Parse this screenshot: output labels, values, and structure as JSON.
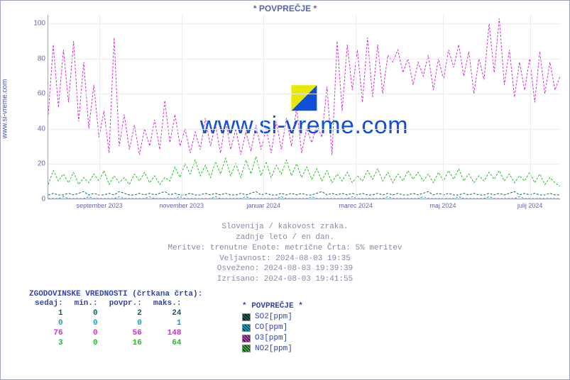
{
  "title": "* POVPREČJE *",
  "ylabel": "www.si-vreme.com",
  "watermark": {
    "text": "www.si-vreme.com"
  },
  "chart": {
    "type": "line",
    "ylim": [
      0,
      105
    ],
    "ytick_step": 20,
    "yticks": [
      0,
      20,
      40,
      60,
      80,
      100
    ],
    "xticks": [
      "september 2023",
      "november 2023",
      "januar 2024",
      "marec 2024",
      "maj 2024",
      "julij 2024"
    ],
    "xtick_positions_pct": [
      10,
      26,
      42,
      60,
      77,
      94
    ],
    "grid_color": "#eceaf2",
    "axis_color": "#a0a0c0",
    "background_color": "#ffffff",
    "series": [
      {
        "name": "SO2[ppm]",
        "color": "#106060",
        "dash": "3,2",
        "width": 1,
        "values": [
          2,
          3,
          2,
          2,
          3,
          2,
          3,
          4,
          2,
          3,
          2,
          2,
          3,
          2,
          4,
          3,
          2,
          2,
          3,
          2,
          3,
          2,
          3,
          4,
          2,
          3,
          2,
          2,
          3,
          2,
          2,
          3,
          2,
          3,
          2,
          3,
          2,
          2,
          3,
          2,
          3,
          4,
          2,
          3,
          2,
          2,
          3,
          2,
          3,
          2,
          3,
          2,
          2,
          3,
          4,
          2,
          3,
          2,
          3,
          2,
          3,
          2,
          3,
          2,
          2,
          3,
          2,
          3,
          2,
          3,
          2,
          2,
          3,
          2,
          3,
          4,
          2,
          3,
          2,
          3,
          2,
          2,
          3,
          2,
          3,
          2,
          2,
          3,
          2,
          3,
          2,
          3,
          4,
          2,
          3,
          2,
          3,
          2,
          2,
          3,
          2,
          2
        ]
      },
      {
        "name": "CO[ppm]",
        "color": "#10a0c0",
        "dash": "3,2",
        "width": 1,
        "values": [
          0,
          0,
          0,
          1,
          0,
          0,
          0,
          0,
          1,
          0,
          0,
          0,
          0,
          0,
          1,
          0,
          0,
          0,
          0,
          0,
          1,
          0,
          0,
          0,
          0,
          0,
          1,
          0,
          0,
          0,
          0,
          0,
          0,
          1,
          0,
          0,
          0,
          0,
          0,
          1,
          0,
          0,
          0,
          0,
          0,
          0,
          1,
          0,
          0,
          0,
          0,
          0,
          1,
          0,
          0,
          0,
          0,
          0,
          0,
          0,
          1,
          0,
          0,
          0,
          0,
          0,
          0,
          1,
          0,
          0,
          0,
          0,
          0,
          0,
          1,
          0,
          0,
          0,
          0,
          0,
          0,
          1,
          0,
          0,
          0,
          0,
          0,
          1,
          0,
          0,
          0,
          0,
          0,
          1,
          0,
          0,
          0,
          0,
          0,
          0,
          0,
          0
        ]
      },
      {
        "name": "O3[ppm]",
        "color": "#d030d0",
        "dash": "3,2",
        "width": 1,
        "values": [
          48,
          88,
          52,
          85,
          55,
          90,
          44,
          78,
          40,
          65,
          35,
          50,
          26,
          92,
          30,
          48,
          28,
          42,
          25,
          40,
          30,
          45,
          28,
          56,
          32,
          48,
          30,
          40,
          26,
          38,
          28,
          46,
          30,
          42,
          26,
          45,
          28,
          40,
          25,
          38,
          27,
          42,
          28,
          40,
          26,
          44,
          28,
          46,
          30,
          52,
          26,
          40,
          32,
          42,
          35,
          64,
          25,
          90,
          50,
          88,
          62,
          85,
          55,
          92,
          58,
          88,
          60,
          82,
          78,
          85,
          72,
          80,
          65,
          78,
          70,
          82,
          62,
          80,
          68,
          85,
          75,
          88,
          70,
          84,
          60,
          80,
          68,
          100,
          72,
          103,
          65,
          85,
          58,
          78,
          62,
          80,
          55,
          84,
          60,
          78,
          62,
          70
        ]
      },
      {
        "name": "NO2[ppm]",
        "color": "#20c020",
        "dash": "3,2",
        "width": 1,
        "values": [
          8,
          16,
          10,
          14,
          9,
          15,
          8,
          12,
          9,
          14,
          10,
          16,
          8,
          13,
          9,
          12,
          8,
          14,
          10,
          15,
          9,
          13,
          8,
          12,
          10,
          18,
          12,
          20,
          14,
          22,
          13,
          19,
          12,
          21,
          14,
          23,
          13,
          20,
          12,
          22,
          14,
          24,
          13,
          21,
          12,
          19,
          14,
          22,
          13,
          20,
          12,
          18,
          11,
          17,
          10,
          16,
          9,
          14,
          10,
          15,
          9,
          13,
          10,
          16,
          11,
          17,
          10,
          15,
          9,
          14,
          10,
          16,
          11,
          15,
          10,
          14,
          9,
          15,
          10,
          16,
          11,
          17,
          10,
          14,
          9,
          13,
          10,
          15,
          11,
          16,
          10,
          14,
          9,
          13,
          10,
          15,
          9,
          14,
          8,
          12,
          9,
          7
        ]
      }
    ]
  },
  "meta": {
    "line1": "Slovenija / kakovost zraka.",
    "line2": "zadnje leto / en dan.",
    "line3": "Meritve: trenutne  Enote: metrične  Črta: 5% meritev",
    "line4": "Veljavnost: 2024-08-03 19:35",
    "line5": "Osveženo: 2024-08-03 19:39:39",
    "line6": "Izrisano: 2024-08-03 19:41:55"
  },
  "historic": {
    "header": "ZGODOVINSKE VREDNOSTI (črtkana črta):",
    "columns": [
      "sedaj:",
      "min.:",
      "povpr.:",
      "maks.:"
    ],
    "rows": [
      {
        "now": 1,
        "min": 0,
        "avg": 2,
        "max": 24,
        "color": "#106060"
      },
      {
        "now": 0,
        "min": 0,
        "avg": 0,
        "max": 1,
        "color": "#10a0c0"
      },
      {
        "now": 76,
        "min": 0,
        "avg": 56,
        "max": 148,
        "color": "#d030d0"
      },
      {
        "now": 3,
        "min": 0,
        "avg": 16,
        "max": 64,
        "color": "#20c020"
      }
    ]
  },
  "legend": {
    "title": "*  POVPREČJE *",
    "items": [
      {
        "label": "SO2[ppm]",
        "color": "#106060"
      },
      {
        "label": "CO[ppm]",
        "color": "#10a0c0"
      },
      {
        "label": "O3[ppm]",
        "color": "#d030d0"
      },
      {
        "label": "NO2[ppm]",
        "color": "#20c020"
      }
    ]
  }
}
